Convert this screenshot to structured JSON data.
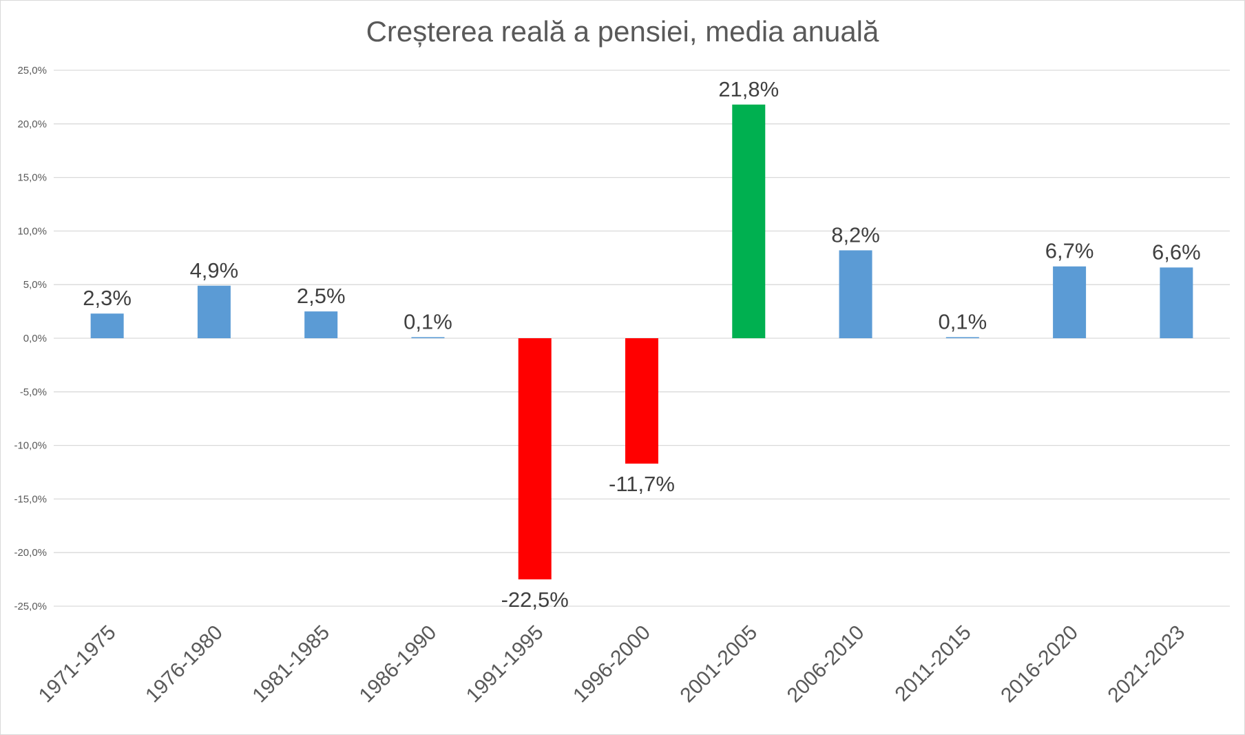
{
  "chart_data": {
    "type": "bar",
    "title": "Creșterea reală a pensiei, media anuală",
    "xlabel": "",
    "ylabel": "",
    "ylim": [
      -25,
      25
    ],
    "yticks": [
      25,
      20,
      15,
      10,
      5,
      0,
      -5,
      -10,
      -15,
      -20,
      -25
    ],
    "ytick_labels": [
      "25,0%",
      "20,0%",
      "15,0%",
      "10,0%",
      "5,0%",
      "0,0%",
      "-5,0%",
      "-10,0%",
      "-15,0%",
      "-20,0%",
      "-25,0%"
    ],
    "grid": true,
    "legend": "none",
    "categories": [
      "1971-1975",
      "1976-1980",
      "1981-1985",
      "1986-1990",
      "1991-1995",
      "1996-2000",
      "2001-2005",
      "2006-2010",
      "2011-2015",
      "2016-2020",
      "2021-2023"
    ],
    "values": [
      2.3,
      4.9,
      2.5,
      0.1,
      -22.5,
      -11.7,
      21.8,
      8.2,
      0.1,
      6.7,
      6.6
    ],
    "data_labels": [
      "2,3%",
      "4,9%",
      "2,5%",
      "0,1%",
      "-22,5%",
      "-11,7%",
      "21,8%",
      "8,2%",
      "0,1%",
      "6,7%",
      "6,6%"
    ],
    "colors": [
      "#5b9bd5",
      "#5b9bd5",
      "#5b9bd5",
      "#5b9bd5",
      "#ff0000",
      "#ff0000",
      "#00b050",
      "#5b9bd5",
      "#5b9bd5",
      "#5b9bd5",
      "#5b9bd5"
    ]
  }
}
